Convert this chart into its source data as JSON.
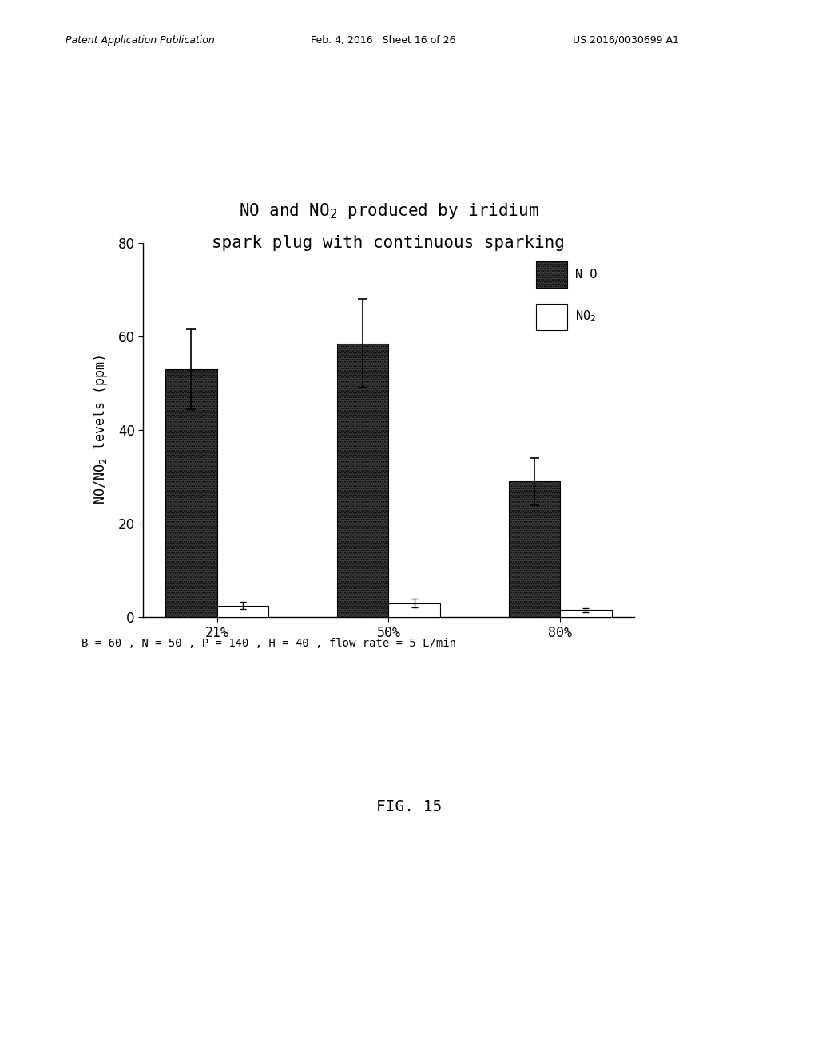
{
  "categories": [
    "21%",
    "50%",
    "80%"
  ],
  "NO_values": [
    53.0,
    58.5,
    29.0
  ],
  "NO2_values": [
    2.5,
    3.0,
    1.5
  ],
  "NO_errors_upper": [
    8.5,
    9.5,
    5.0
  ],
  "NO_errors_lower": [
    8.5,
    9.5,
    5.0
  ],
  "NO2_errors_upper": [
    0.8,
    1.0,
    0.4
  ],
  "NO2_errors_lower": [
    0.8,
    1.0,
    0.4
  ],
  "ylim": [
    0,
    80
  ],
  "yticks": [
    0,
    20,
    40,
    60,
    80
  ],
  "bar_color_NO": "#404040",
  "bar_color_NO2": "#ffffff",
  "bar_width": 0.3,
  "annotation": "B = 60 , N = 50 , P = 140 , H = 40 , flow rate = 5 L/min",
  "fig_label": "FIG. 15",
  "header_left": "Patent Application Publication",
  "header_mid": "Feb. 4, 2016   Sheet 16 of 26",
  "header_right": "US 2016/0030699 A1",
  "background_color": "#ffffff",
  "legend_NO_label": "N O",
  "legend_NO2_label": "NO",
  "title_fontsize": 15,
  "tick_fontsize": 12,
  "annot_fontsize": 10,
  "fig_label_fontsize": 14
}
